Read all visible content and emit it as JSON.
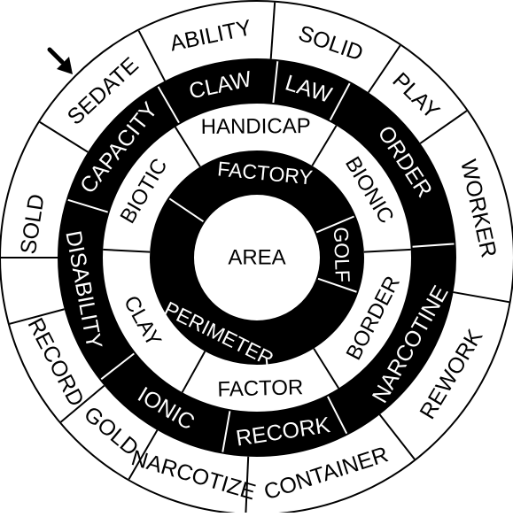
{
  "puzzle": {
    "center_word": "AREA",
    "colors": {
      "ink": "#000000",
      "paper": "#ffffff"
    },
    "pointer_icon": "arrow-pointer-icon",
    "rings": [
      {
        "name": "outer",
        "fill": "white",
        "segments": [
          {
            "label": "ABILITY"
          },
          {
            "label": "SOLID"
          },
          {
            "label": "PLAY"
          },
          {
            "label": "WORKER"
          },
          {
            "label": "REWORK"
          },
          {
            "label": "CONTAINER"
          },
          {
            "label": "NARCOTIZE"
          },
          {
            "label": "GOLD"
          },
          {
            "label": "RECORD"
          },
          {
            "label": "SOLD"
          },
          {
            "label": "SEDATE"
          }
        ]
      },
      {
        "name": "second",
        "fill": "black",
        "segments": [
          {
            "label": "CLAW"
          },
          {
            "label": "LAW"
          },
          {
            "label": "ORDER"
          },
          {
            "label": "NARCOTINE"
          },
          {
            "label": "RECORK"
          },
          {
            "label": "IONIC"
          },
          {
            "label": "DISABILITY"
          },
          {
            "label": "CAPACITY"
          }
        ]
      },
      {
        "name": "third",
        "fill": "white",
        "segments": [
          {
            "label": "HANDICAP"
          },
          {
            "label": "BIONIC"
          },
          {
            "label": "BORDER"
          },
          {
            "label": "FACTOR"
          },
          {
            "label": "CLAY"
          },
          {
            "label": "BIOTIC"
          }
        ]
      },
      {
        "name": "inner",
        "fill": "black",
        "segments": [
          {
            "label": "FACTORY"
          },
          {
            "label": "GOLF"
          },
          {
            "label": "PERIMETER"
          }
        ]
      }
    ]
  }
}
